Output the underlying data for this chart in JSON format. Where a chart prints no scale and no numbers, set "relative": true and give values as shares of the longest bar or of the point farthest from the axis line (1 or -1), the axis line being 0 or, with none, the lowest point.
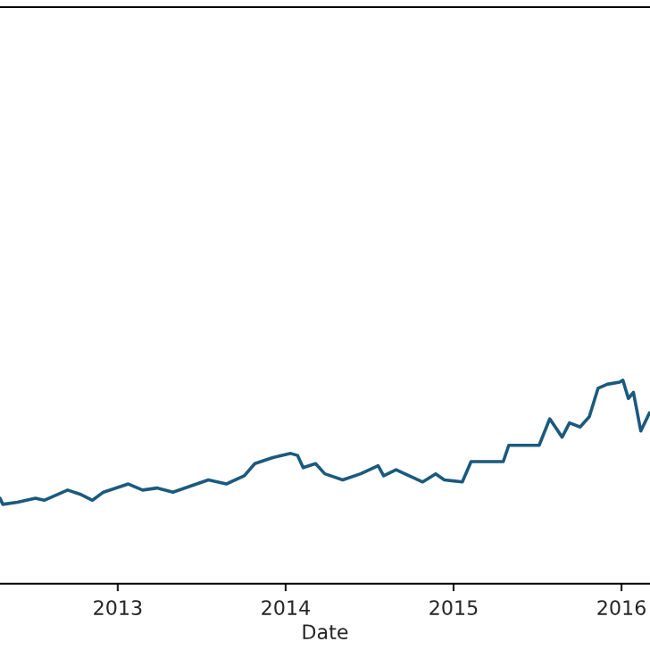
{
  "chart_data": {
    "type": "line",
    "xlabel": "Date",
    "relative": true,
    "xlim": [
      "2012-04-20",
      "2016-03-03"
    ],
    "xticks": [
      "2013",
      "2014",
      "2015",
      "2016"
    ],
    "x": [
      "2012-04-20",
      "2012-04-26",
      "2012-05-28",
      "2012-07-06",
      "2012-07-25",
      "2012-09-14",
      "2012-10-11",
      "2012-11-07",
      "2012-12-01",
      "2013-01-24",
      "2013-02-24",
      "2013-03-27",
      "2013-05-01",
      "2013-06-09",
      "2013-07-17",
      "2013-08-25",
      "2013-10-03",
      "2013-10-26",
      "2013-12-04",
      "2014-01-12",
      "2014-01-27",
      "2014-02-08",
      "2014-03-07",
      "2014-03-27",
      "2014-05-05",
      "2014-06-13",
      "2014-07-21",
      "2014-08-02",
      "2014-08-29",
      "2014-10-26",
      "2014-11-23",
      "2014-12-12",
      "2015-01-20",
      "2015-02-08",
      "2015-04-19",
      "2015-05-01",
      "2015-07-06",
      "2015-07-29",
      "2015-08-25",
      "2015-09-10",
      "2015-10-03",
      "2015-10-23",
      "2015-11-11",
      "2015-12-01",
      "2015-12-28",
      "2016-01-04",
      "2016-01-16",
      "2016-01-27",
      "2016-02-12",
      "2016-03-02"
    ],
    "series": [
      {
        "color": "#1b5a7e",
        "values": [
          0.42,
          0.39,
          0.4,
          0.42,
          0.41,
          0.46,
          0.44,
          0.41,
          0.45,
          0.49,
          0.46,
          0.47,
          0.45,
          0.48,
          0.51,
          0.49,
          0.53,
          0.59,
          0.62,
          0.64,
          0.63,
          0.57,
          0.59,
          0.54,
          0.51,
          0.54,
          0.58,
          0.53,
          0.56,
          0.5,
          0.54,
          0.51,
          0.5,
          0.6,
          0.6,
          0.68,
          0.68,
          0.81,
          0.72,
          0.79,
          0.77,
          0.82,
          0.96,
          0.98,
          0.99,
          1.0,
          0.91,
          0.94,
          0.75,
          0.84
        ]
      }
    ],
    "grid": false,
    "legend": false
  }
}
